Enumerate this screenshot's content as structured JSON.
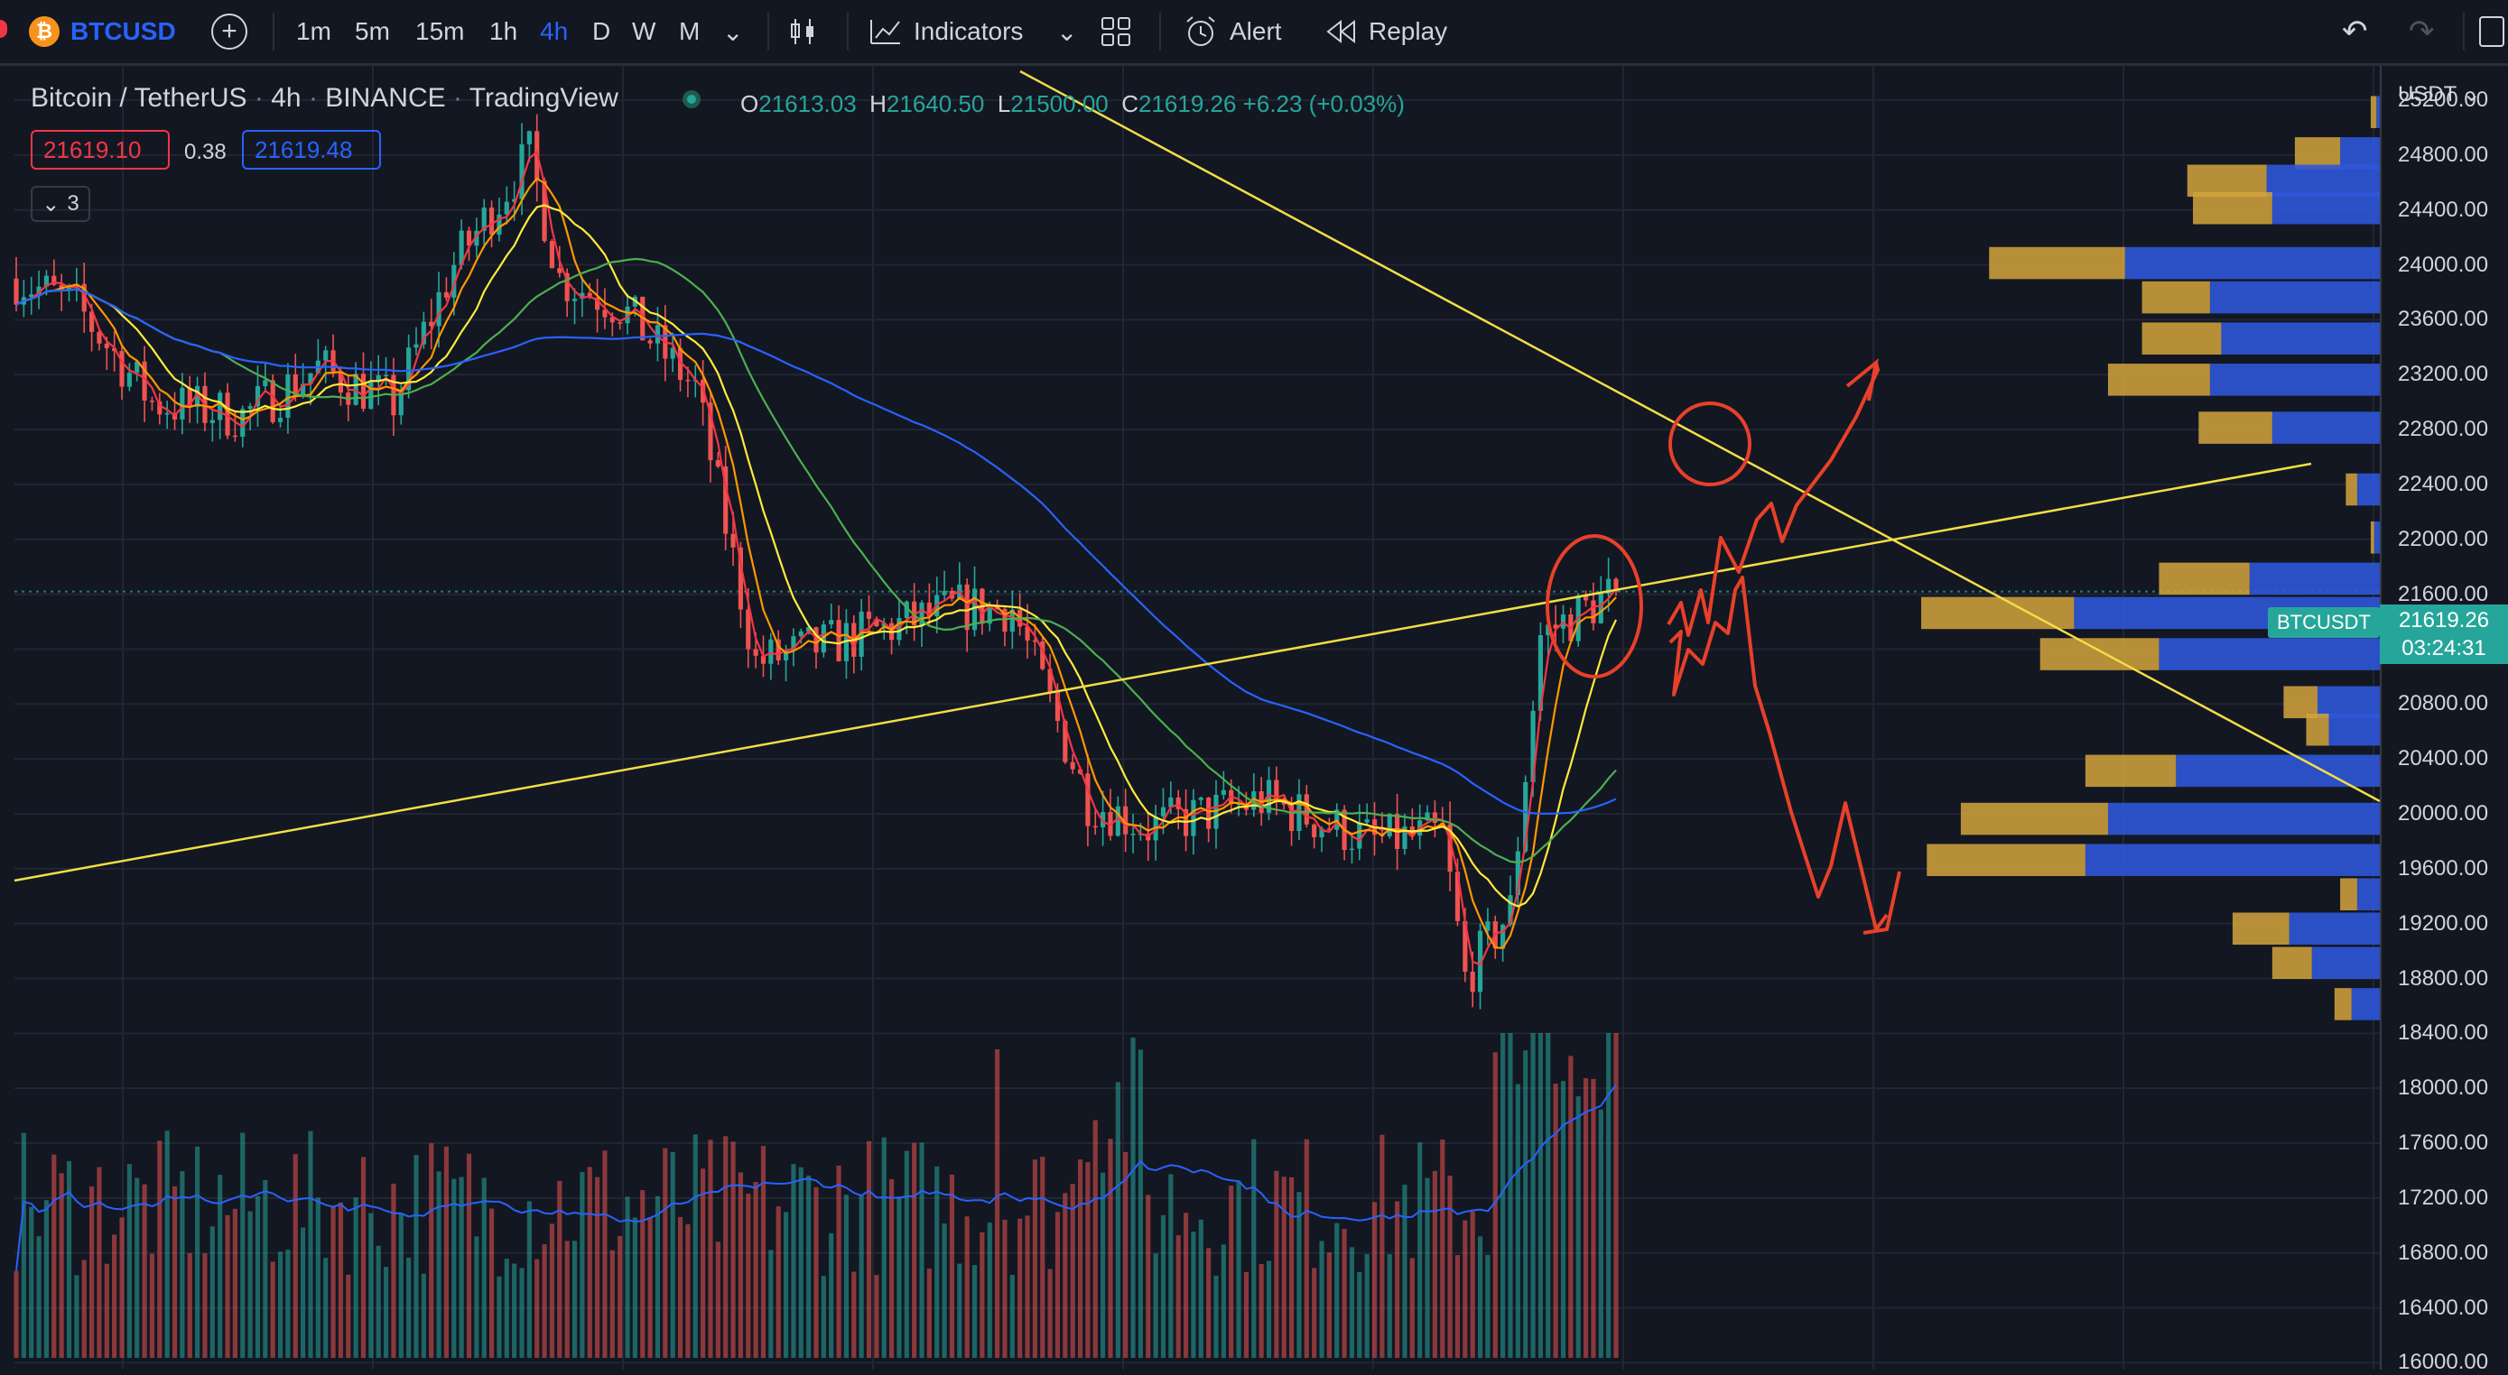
{
  "toolbar": {
    "symbol_icon": "₿",
    "symbol": "BTCUSD",
    "add_icon": "+",
    "timeframes": [
      "1m",
      "5m",
      "15m",
      "1h",
      "4h",
      "D",
      "W",
      "M"
    ],
    "active_timeframe": "4h",
    "chevron": "⌄",
    "indicators_label": "Indicators",
    "alert_label": "Alert",
    "replay_label": "Replay",
    "undo_icon": "↶",
    "redo_icon": "↷"
  },
  "legend": {
    "pair": "Bitcoin / TetherUS",
    "interval": "4h",
    "exchange": "BINANCE",
    "source": "TradingView",
    "open_key": "O",
    "open": "21613.03",
    "high_key": "H",
    "high": "21640.50",
    "low_key": "L",
    "low": "21500.00",
    "close_key": "C",
    "close": "21619.26",
    "change": "+6.23 (+0.03%)",
    "bid": "21619.10",
    "spread": "0.38",
    "ask": "21619.48",
    "indicator_count": "3",
    "collapse_icon": "⌄"
  },
  "price_scale": {
    "currency": "USDT ⌄",
    "ticks": [
      "25200.00",
      "24800.00",
      "24400.00",
      "24000.00",
      "23600.00",
      "23200.00",
      "22800.00",
      "22400.00",
      "22000.00",
      "21600.00",
      "21200.00",
      "20800.00",
      "20400.00",
      "20000.00",
      "19600.00",
      "19200.00",
      "18800.00",
      "18400.00",
      "18000.00",
      "17600.00",
      "17200.00",
      "16800.00",
      "16400.00",
      "16000.00"
    ],
    "last_price": "21619.26",
    "countdown": "03:24:31",
    "symbol_tag": "BTCUSDT"
  },
  "chart_data": {
    "type": "candlestick",
    "symbol": "BTCUSDT",
    "interval": "4h",
    "ylim": [
      15950,
      25450
    ],
    "price_path_anchors": [
      {
        "i": 0,
        "p": 23900
      },
      {
        "i": 8,
        "p": 23700
      },
      {
        "i": 18,
        "p": 23000
      },
      {
        "i": 30,
        "p": 22900
      },
      {
        "i": 40,
        "p": 23250
      },
      {
        "i": 50,
        "p": 23000
      },
      {
        "i": 58,
        "p": 24000
      },
      {
        "i": 68,
        "p": 24800
      },
      {
        "i": 72,
        "p": 23900
      },
      {
        "i": 80,
        "p": 23700
      },
      {
        "i": 90,
        "p": 23100
      },
      {
        "i": 98,
        "p": 21100
      },
      {
        "i": 112,
        "p": 21300
      },
      {
        "i": 125,
        "p": 21500
      },
      {
        "i": 132,
        "p": 21500
      },
      {
        "i": 142,
        "p": 20100
      },
      {
        "i": 150,
        "p": 19900
      },
      {
        "i": 165,
        "p": 20100
      },
      {
        "i": 180,
        "p": 19800
      },
      {
        "i": 189,
        "p": 19850
      },
      {
        "i": 192,
        "p": 18800
      },
      {
        "i": 198,
        "p": 19300
      },
      {
        "i": 202,
        "p": 21300
      },
      {
        "i": 212,
        "p": 21620
      }
    ],
    "candle_count": 213,
    "last": 21619.26,
    "moving_averages": [
      {
        "color": "#f23645"
      },
      {
        "color": "#ff9800"
      },
      {
        "color": "#ffeb3b"
      },
      {
        "color": "#4caf50"
      },
      {
        "color": "#2962ff"
      }
    ],
    "volume": true,
    "volume_profile": [
      {
        "price": 25100,
        "buy": 5,
        "sell": 3
      },
      {
        "price": 24800,
        "buy": 40,
        "sell": 35
      },
      {
        "price": 24600,
        "buy": 70,
        "sell": 100
      },
      {
        "price": 24400,
        "buy": 70,
        "sell": 95
      },
      {
        "price": 24000,
        "buy": 120,
        "sell": 225
      },
      {
        "price": 23750,
        "buy": 60,
        "sell": 150
      },
      {
        "price": 23450,
        "buy": 70,
        "sell": 140
      },
      {
        "price": 23150,
        "buy": 90,
        "sell": 150
      },
      {
        "price": 22800,
        "buy": 65,
        "sell": 95
      },
      {
        "price": 22350,
        "buy": 10,
        "sell": 20
      },
      {
        "price": 22000,
        "buy": 3,
        "sell": 5
      },
      {
        "price": 21700,
        "buy": 80,
        "sell": 115
      },
      {
        "price": 21450,
        "buy": 135,
        "sell": 270
      },
      {
        "price": 21150,
        "buy": 105,
        "sell": 195
      },
      {
        "price": 20800,
        "buy": 30,
        "sell": 55
      },
      {
        "price": 20600,
        "buy": 20,
        "sell": 45
      },
      {
        "price": 20300,
        "buy": 80,
        "sell": 180
      },
      {
        "price": 19950,
        "buy": 130,
        "sell": 240
      },
      {
        "price": 19650,
        "buy": 140,
        "sell": 260
      },
      {
        "price": 19400,
        "buy": 15,
        "sell": 20
      },
      {
        "price": 19150,
        "buy": 50,
        "sell": 80
      },
      {
        "price": 18900,
        "buy": 35,
        "sell": 60
      },
      {
        "price": 18600,
        "buy": 15,
        "sell": 25
      }
    ],
    "drawings": [
      "descending trendline (yellow)",
      "ascending trendline (yellow)",
      "red circles",
      "red projection arrows"
    ]
  },
  "colors": {
    "up": "#26a69a",
    "down": "#ef5350",
    "accent": "#2962ff",
    "profile_sell": "#d4a53c",
    "profile_buy": "#2f57d8",
    "annotation": "#e8402a"
  }
}
